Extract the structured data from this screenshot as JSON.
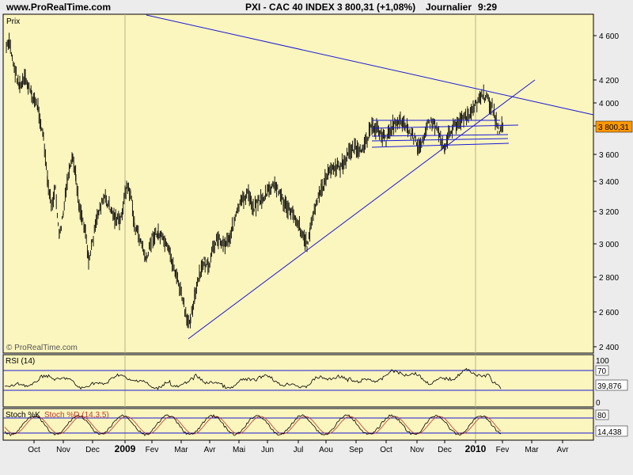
{
  "header": {
    "site": "www.ProRealTime.com",
    "title": "PXI - CAC 40 INDEX",
    "quote": "3 800,31 (+1,08%)",
    "period": "Journalier",
    "time": "9:29"
  },
  "price_panel": {
    "label": "Prix",
    "watermark": "© ProRealTime.com",
    "last_value_label": "3 800,31",
    "y_ticks": [
      "4 600",
      "4 200",
      "4 000",
      "3 800",
      "3 600",
      "3 400",
      "3 200",
      "3 000",
      "2 800",
      "2 600",
      "2 400"
    ]
  },
  "rsi_panel": {
    "label": "RSI (14)",
    "y_ticks": [
      "100",
      "0"
    ],
    "level_box": "70",
    "value_box": "39,876"
  },
  "stoch_panel": {
    "label_k": "Stoch %K",
    "label_d": "Stoch %D (14,3,5)",
    "level_box": "80",
    "value_box": "14,438"
  },
  "x_axis": {
    "labels": [
      "Oct",
      "Nov",
      "Dec",
      "2009",
      "Fev",
      "Mar",
      "Avr",
      "Mai",
      "Jun",
      "Jul",
      "Aou",
      "Sep",
      "Oct",
      "Nov",
      "Dec",
      "2010",
      "Fev",
      "Mar",
      "Avr"
    ]
  },
  "colors": {
    "background": "#fbf5be",
    "frame": "#000000",
    "trendline": "#1a1ad6",
    "price_bars": "#000000",
    "stoch_k": "#000000",
    "stoch_d": "#c0392b",
    "value_box": "#ff9900"
  },
  "chart_data": {
    "type": "ohlc",
    "title": "PXI - CAC 40 INDEX",
    "x_labels": [
      "Oct",
      "Nov",
      "Dec",
      "2009",
      "Fev",
      "Mar",
      "Avr",
      "Mai",
      "Jun",
      "Jul",
      "Aou",
      "Sep",
      "Oct",
      "Nov",
      "Dec",
      "2010",
      "Fev",
      "Mar",
      "Avr"
    ],
    "ylim": [
      2400,
      4700
    ],
    "price_anchors": [
      [
        "Sep 2008",
        4550
      ],
      [
        "Oct 2008",
        3950
      ],
      [
        "Oct 2008",
        3100
      ],
      [
        "Nov 2008",
        3500
      ],
      [
        "Nov 2008",
        3000
      ],
      [
        "Dec 2008",
        3300
      ],
      [
        "Dec 2008",
        3150
      ],
      [
        "2009",
        3400
      ],
      [
        "Fev 2009",
        2950
      ],
      [
        "Mar 2009",
        2500
      ],
      [
        "Avr 2009",
        2950
      ],
      [
        "Mai 2009",
        3250
      ],
      [
        "Jun 2009",
        3350
      ],
      [
        "Jul 2009",
        3000
      ],
      [
        "Aou 2009",
        3500
      ],
      [
        "Sep 2009",
        3800
      ],
      [
        "Oct 2009",
        3850
      ],
      [
        "Nov 2009",
        3650
      ],
      [
        "Dec 2009",
        3850
      ],
      [
        "Jan 2010",
        4050
      ],
      [
        "Fev 2010",
        3750
      ],
      [
        "Fev 2010",
        3800
      ]
    ],
    "last_close": 3800.31,
    "change_pct": 1.08,
    "indicators": {
      "rsi_14": {
        "range": [
          0,
          100
        ],
        "level": 70,
        "last": 39.876
      },
      "stochastic_14_3_5": {
        "range": [
          0,
          100
        ],
        "level": 80,
        "last_k": 14.438
      }
    }
  }
}
